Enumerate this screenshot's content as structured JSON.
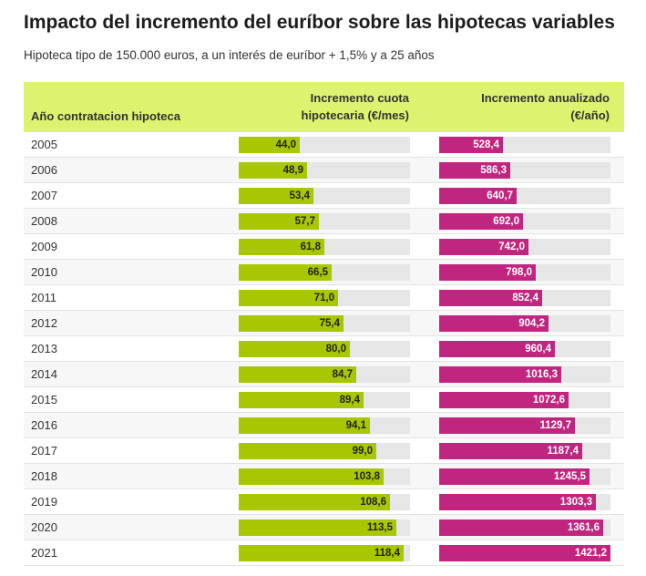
{
  "title": "Impacto del incremento del euríbor sobre las hipotecas variables",
  "subtitle": "Hipoteca tipo de 150.000 euros, a un interés de euríbor + 1,5% y a 25 años",
  "header": {
    "year": "Año contratacion hipoteca",
    "col1_line1": "Incremento cuota",
    "col1_line2": "hipotecaria (€/mes)",
    "col2_line1": "Incremento anualizado",
    "col2_line2": "(€/año)"
  },
  "colors": {
    "header_bg": "#ddf26e",
    "bar1": "#a8c700",
    "bar2": "#c0267f",
    "track": "#e6e6e6"
  },
  "chart_data": {
    "type": "table",
    "categories": [
      "2005",
      "2006",
      "2007",
      "2008",
      "2009",
      "2010",
      "2011",
      "2012",
      "2013",
      "2014",
      "2015",
      "2016",
      "2017",
      "2018",
      "2019",
      "2020",
      "2021"
    ],
    "series": [
      {
        "name": "Incremento cuota hipotecaria (€/mes)",
        "values": [
          44.0,
          48.9,
          53.4,
          57.7,
          61.8,
          66.5,
          71.0,
          75.4,
          80.0,
          84.7,
          89.4,
          94.1,
          99.0,
          103.8,
          108.6,
          113.5,
          118.4
        ],
        "labels": [
          "44,0",
          "48,9",
          "53,4",
          "57,7",
          "61,8",
          "66,5",
          "71,0",
          "75,4",
          "80,0",
          "84,7",
          "89,4",
          "94,1",
          "99,0",
          "103,8",
          "108,6",
          "113,5",
          "118,4"
        ],
        "max": 123
      },
      {
        "name": "Incremento anualizado (€/año)",
        "values": [
          528.4,
          586.3,
          640.7,
          692.0,
          742.0,
          798.0,
          852.4,
          904.2,
          960.4,
          1016.3,
          1072.6,
          1129.7,
          1187.4,
          1245.5,
          1303.3,
          1361.6,
          1421.2
        ],
        "labels": [
          "528,4",
          "586,3",
          "640,7",
          "692,0",
          "742,0",
          "798,0",
          "852,4",
          "904,2",
          "960,4",
          "1016,3",
          "1072,6",
          "1129,7",
          "1187,4",
          "1245,5",
          "1303,3",
          "1361,6",
          "1421,2"
        ],
        "max": 1421.2
      }
    ]
  }
}
